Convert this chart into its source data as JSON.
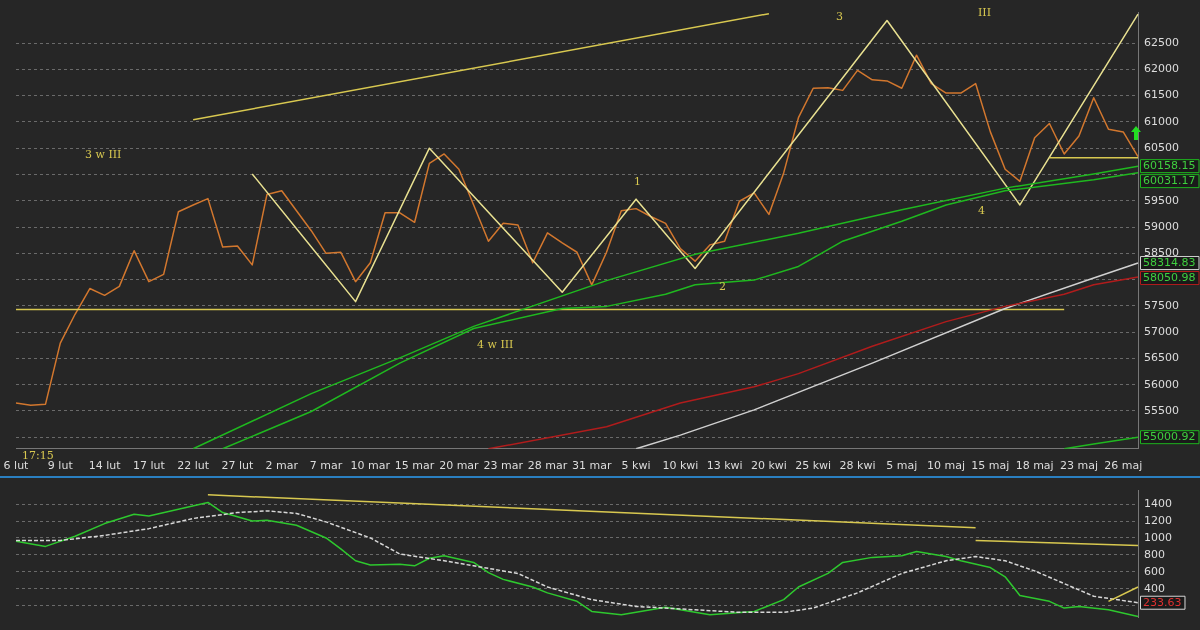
{
  "chart_data": [
    {
      "type": "line",
      "marker": "none",
      "grid": "y",
      "ylim": [
        54780,
        63080
      ],
      "yticks": [
        {
          "value": 55000,
          "label": null
        },
        55500,
        56000,
        56500,
        57000,
        57500,
        {
          "value": 58000,
          "label": null
        },
        58500,
        59000,
        59500,
        {
          "value": 60000,
          "label": null
        },
        60500,
        61000,
        61500,
        62000,
        62500
      ],
      "categories": [
        "6 lut",
        null,
        null,
        "9 lut",
        null,
        null,
        "14 lut",
        null,
        null,
        "17 lut",
        null,
        null,
        "22 lut",
        null,
        null,
        "27 lut",
        null,
        null,
        "2 mar",
        null,
        null,
        "7 mar",
        null,
        null,
        "10 mar",
        null,
        null,
        "15 mar",
        null,
        null,
        "20 mar",
        null,
        null,
        "23 mar",
        null,
        null,
        "28 mar",
        null,
        null,
        "31 mar",
        null,
        null,
        "5 kwi",
        null,
        null,
        "10 kwi",
        null,
        null,
        "13 kwi",
        null,
        null,
        "20 kwi",
        null,
        null,
        "25 kwi",
        null,
        null,
        "28 kwi",
        null,
        null,
        "5 maj",
        null,
        null,
        "10 maj",
        null,
        null,
        "15 maj",
        null,
        null,
        "18 maj",
        null,
        null,
        "23 maj",
        null,
        null,
        "26 maj",
        null
      ],
      "series": [
        {
          "type": "line",
          "color": "#1fb81f",
          "values": [
            null,
            null,
            null,
            null,
            null,
            null,
            null,
            null,
            null,
            null,
            null,
            null,
            54780,
            null,
            null,
            null,
            null,
            null,
            null,
            null,
            55830,
            null,
            null,
            null,
            null,
            null,
            56510,
            null,
            null,
            null,
            null,
            57110,
            null,
            null,
            null,
            null,
            null,
            null,
            null,
            null,
            57980,
            null,
            null,
            null,
            null,
            null,
            58480,
            null,
            null,
            null,
            null,
            null,
            null,
            58880,
            null,
            null,
            null,
            null,
            null,
            null,
            59330,
            null,
            null,
            null,
            null,
            null,
            null,
            59740,
            null,
            null,
            null,
            null,
            null,
            60010,
            null,
            null,
            60158.15
          ],
          "value_labels": [
            null,
            null,
            null,
            null,
            null,
            null,
            null,
            null,
            null,
            null,
            null,
            null,
            null,
            null,
            null,
            null,
            null,
            null,
            null,
            null,
            null,
            null,
            null,
            null,
            null,
            null,
            null,
            null,
            null,
            null,
            null,
            null,
            null,
            null,
            null,
            null,
            null,
            null,
            null,
            null,
            null,
            null,
            null,
            null,
            null,
            null,
            null,
            null,
            null,
            null,
            null,
            null,
            null,
            null,
            null,
            null,
            null,
            null,
            null,
            null,
            null,
            null,
            null,
            null,
            null,
            null,
            null,
            null,
            null,
            null,
            null,
            null,
            null,
            null,
            null,
            null,
            "60158.15"
          ]
        },
        {
          "type": "line",
          "color": "#1fb81f",
          "values": [
            null,
            null,
            null,
            null,
            null,
            null,
            null,
            null,
            null,
            null,
            null,
            null,
            null,
            null,
            54780,
            null,
            null,
            null,
            null,
            null,
            55490,
            null,
            null,
            null,
            null,
            null,
            56410,
            null,
            null,
            null,
            null,
            57070,
            null,
            null,
            null,
            null,
            null,
            57450,
            null,
            null,
            57490,
            null,
            null,
            null,
            57720,
            null,
            57900,
            null,
            null,
            null,
            57990,
            null,
            null,
            58250,
            null,
            null,
            58730,
            null,
            null,
            null,
            59110,
            null,
            null,
            59420,
            null,
            null,
            null,
            59690,
            null,
            null,
            null,
            null,
            null,
            59900,
            null,
            null,
            60031.17
          ],
          "value_labels": [
            null,
            null,
            null,
            null,
            null,
            null,
            null,
            null,
            null,
            null,
            null,
            null,
            null,
            null,
            null,
            null,
            null,
            null,
            null,
            null,
            null,
            null,
            null,
            null,
            null,
            null,
            null,
            null,
            null,
            null,
            null,
            null,
            null,
            null,
            null,
            null,
            null,
            null,
            null,
            null,
            null,
            null,
            null,
            null,
            null,
            null,
            null,
            null,
            null,
            null,
            null,
            null,
            null,
            null,
            null,
            null,
            null,
            null,
            null,
            null,
            null,
            null,
            null,
            null,
            null,
            null,
            null,
            null,
            null,
            null,
            null,
            null,
            null,
            null,
            null,
            null,
            "60031.17"
          ]
        },
        {
          "type": "line",
          "color": "#b01c1c",
          "values": [
            null,
            null,
            null,
            null,
            null,
            null,
            null,
            null,
            null,
            null,
            null,
            null,
            null,
            null,
            null,
            null,
            null,
            null,
            null,
            null,
            null,
            null,
            null,
            null,
            null,
            null,
            null,
            null,
            null,
            null,
            null,
            null,
            54780,
            null,
            null,
            null,
            null,
            null,
            null,
            null,
            55200,
            null,
            null,
            null,
            null,
            55650,
            null,
            null,
            null,
            null,
            55960,
            null,
            null,
            56210,
            null,
            null,
            null,
            null,
            56730,
            null,
            null,
            null,
            null,
            57200,
            null,
            null,
            null,
            57490,
            null,
            null,
            null,
            57720,
            null,
            57900,
            null,
            null,
            58050.98
          ],
          "value_labels": [
            null,
            null,
            null,
            null,
            null,
            null,
            null,
            null,
            null,
            null,
            null,
            null,
            null,
            null,
            null,
            null,
            null,
            null,
            null,
            null,
            null,
            null,
            null,
            null,
            null,
            null,
            null,
            null,
            null,
            null,
            null,
            null,
            null,
            null,
            null,
            null,
            null,
            null,
            null,
            null,
            null,
            null,
            null,
            null,
            null,
            null,
            null,
            null,
            null,
            null,
            null,
            null,
            null,
            null,
            null,
            null,
            null,
            null,
            null,
            null,
            null,
            null,
            null,
            null,
            null,
            null,
            null,
            null,
            null,
            null,
            null,
            null,
            null,
            null,
            null,
            null,
            "58050.98"
          ]
        },
        {
          "type": "line",
          "color": "#d0d0d0",
          "values": [
            null,
            null,
            null,
            null,
            null,
            null,
            null,
            null,
            null,
            null,
            null,
            null,
            null,
            null,
            null,
            null,
            null,
            null,
            null,
            null,
            null,
            null,
            null,
            null,
            null,
            null,
            null,
            null,
            null,
            null,
            null,
            null,
            null,
            null,
            null,
            null,
            null,
            null,
            null,
            null,
            null,
            null,
            54780,
            null,
            null,
            55040,
            null,
            null,
            null,
            null,
            55520,
            null,
            null,
            null,
            null,
            null,
            null,
            null,
            56410,
            null,
            null,
            null,
            null,
            null,
            null,
            null,
            null,
            57450,
            null,
            null,
            null,
            null,
            null,
            58030,
            null,
            null,
            58314.83
          ],
          "value_labels": [
            null,
            null,
            null,
            null,
            null,
            null,
            null,
            null,
            null,
            null,
            null,
            null,
            null,
            null,
            null,
            null,
            null,
            null,
            null,
            null,
            null,
            null,
            null,
            null,
            null,
            null,
            null,
            null,
            null,
            null,
            null,
            null,
            null,
            null,
            null,
            null,
            null,
            null,
            null,
            null,
            null,
            null,
            null,
            null,
            null,
            null,
            null,
            null,
            null,
            null,
            null,
            null,
            null,
            null,
            null,
            null,
            null,
            null,
            null,
            null,
            null,
            null,
            null,
            null,
            null,
            null,
            null,
            null,
            null,
            null,
            null,
            null,
            null,
            null,
            null,
            null,
            "58314.83"
          ]
        },
        {
          "type": "line",
          "color": "#1fb81f",
          "values": [
            null,
            null,
            null,
            null,
            null,
            null,
            null,
            null,
            null,
            null,
            null,
            null,
            null,
            null,
            null,
            null,
            null,
            null,
            null,
            null,
            null,
            null,
            null,
            null,
            null,
            null,
            null,
            null,
            null,
            null,
            null,
            null,
            null,
            null,
            null,
            null,
            null,
            null,
            null,
            null,
            null,
            null,
            null,
            null,
            null,
            null,
            null,
            null,
            null,
            null,
            null,
            null,
            null,
            null,
            null,
            null,
            null,
            null,
            null,
            null,
            null,
            null,
            null,
            null,
            null,
            null,
            null,
            null,
            null,
            null,
            null,
            54780,
            null,
            54870,
            null,
            null,
            55000.92
          ],
          "value_labels": [
            null,
            null,
            null,
            null,
            null,
            null,
            null,
            null,
            null,
            null,
            null,
            null,
            null,
            null,
            null,
            null,
            null,
            null,
            null,
            null,
            null,
            null,
            null,
            null,
            null,
            null,
            null,
            null,
            null,
            null,
            null,
            null,
            null,
            null,
            null,
            null,
            null,
            null,
            null,
            null,
            null,
            null,
            null,
            null,
            null,
            null,
            null,
            null,
            null,
            null,
            null,
            null,
            null,
            null,
            null,
            null,
            null,
            null,
            null,
            null,
            null,
            null,
            null,
            null,
            null,
            null,
            null,
            null,
            null,
            null,
            null,
            null,
            null,
            null,
            null,
            null,
            "55000.92"
          ]
        },
        {
          "type": "line",
          "color": "#d8c850",
          "values": [
            null,
            null,
            null,
            null,
            null,
            null,
            null,
            null,
            null,
            null,
            null,
            null,
            61040,
            null,
            null,
            null,
            null,
            null,
            null,
            null,
            null,
            null,
            null,
            null,
            null,
            null,
            null,
            null,
            null,
            null,
            null,
            null,
            null,
            null,
            null,
            null,
            null,
            null,
            null,
            null,
            null,
            null,
            null,
            null,
            null,
            null,
            null,
            null,
            null,
            null,
            null,
            63060,
            null,
            null,
            null,
            null,
            null,
            null,
            null,
            null,
            null,
            null,
            null,
            null,
            null,
            null,
            null,
            null,
            null,
            null,
            null,
            null,
            null,
            null,
            null,
            null,
            null
          ]
        },
        {
          "type": "line",
          "color": "#d8c850",
          "values": [
            57430,
            null,
            null,
            null,
            null,
            null,
            null,
            null,
            null,
            null,
            null,
            null,
            null,
            null,
            null,
            null,
            null,
            null,
            null,
            null,
            null,
            null,
            null,
            null,
            null,
            null,
            null,
            null,
            null,
            null,
            null,
            null,
            null,
            null,
            null,
            null,
            null,
            null,
            null,
            null,
            null,
            null,
            null,
            null,
            null,
            null,
            null,
            null,
            null,
            null,
            null,
            null,
            null,
            null,
            null,
            null,
            null,
            null,
            null,
            null,
            null,
            null,
            null,
            null,
            null,
            null,
            null,
            null,
            null,
            null,
            null,
            57430,
            null,
            null,
            null,
            null,
            null
          ]
        },
        {
          "type": "line",
          "color": "#d8c850",
          "values": [
            null,
            null,
            null,
            null,
            null,
            null,
            null,
            null,
            null,
            null,
            null,
            null,
            null,
            null,
            null,
            null,
            null,
            null,
            null,
            null,
            null,
            null,
            null,
            null,
            null,
            null,
            null,
            null,
            null,
            null,
            null,
            null,
            null,
            null,
            null,
            null,
            null,
            null,
            null,
            null,
            null,
            null,
            null,
            null,
            null,
            null,
            null,
            null,
            null,
            null,
            null,
            null,
            null,
            null,
            null,
            null,
            null,
            null,
            null,
            null,
            null,
            null,
            null,
            null,
            null,
            null,
            null,
            null,
            null,
            null,
            60320,
            null,
            null,
            null,
            null,
            null,
            60320
          ]
        },
        {
          "type": "line",
          "color": "#e8e090",
          "values": [
            null,
            null,
            null,
            null,
            null,
            null,
            null,
            null,
            null,
            null,
            null,
            null,
            null,
            null,
            null,
            null,
            60010,
            null,
            null,
            null,
            null,
            null,
            null,
            57580,
            null,
            null,
            null,
            null,
            60500,
            null,
            null,
            null,
            null,
            null,
            null,
            null,
            null,
            57760,
            null,
            null,
            null,
            null,
            59530,
            null,
            null,
            null,
            58210,
            null,
            null,
            null,
            null,
            null,
            null,
            null,
            null,
            null,
            null,
            null,
            null,
            62930,
            null,
            null,
            null,
            null,
            null,
            null,
            null,
            null,
            59420,
            null,
            null,
            null,
            null,
            null,
            null,
            null,
            63050
          ]
        },
        {
          "type": "line",
          "color": "#d2772e",
          "values": [
            55650,
            55610,
            55630,
            56790,
            57340,
            57830,
            57700,
            57870,
            58550,
            57960,
            58100,
            59290,
            59420,
            59540,
            58620,
            58640,
            58280,
            59620,
            59690,
            59310,
            58930,
            58500,
            58520,
            57960,
            58320,
            59270,
            59270,
            59090,
            60210,
            60390,
            60100,
            59420,
            58730,
            59070,
            59040,
            58320,
            58890,
            58700,
            58520,
            57900,
            58520,
            59310,
            59350,
            59200,
            59070,
            58590,
            58350,
            58660,
            58730,
            59490,
            59650,
            59240,
            60030,
            61080,
            61640,
            61650,
            61600,
            61980,
            61800,
            61780,
            61640,
            62270,
            61730,
            61550,
            61550,
            61730,
            60810,
            60100,
            59870,
            60700,
            60970,
            60390,
            60730,
            61460,
            60860,
            60810,
            60340
          ]
        }
      ],
      "annotations": [
        "3 w III",
        "4 w III",
        "1",
        "2",
        "3",
        "III",
        "4",
        "17:15"
      ]
    },
    {
      "type": "line",
      "marker": "none",
      "grid": "y",
      "tick_labels": "y",
      "ylim": [
        60,
        1560
      ],
      "yticks": [
        {
          "value": 200,
          "label": null
        },
        400,
        600,
        800,
        1000,
        1200,
        1400
      ],
      "categories": [
        null,
        null,
        null,
        null,
        null,
        null,
        null,
        null,
        null,
        null,
        null,
        null,
        null,
        null,
        null,
        null,
        null,
        null,
        null,
        null,
        null,
        null,
        null,
        null,
        null,
        null,
        null,
        null,
        null,
        null,
        null,
        null,
        null,
        null,
        null,
        null,
        null,
        null,
        null,
        null,
        null,
        null,
        null,
        null,
        null,
        null,
        null,
        null,
        null,
        null,
        null,
        null,
        null,
        null,
        null,
        null,
        null,
        null,
        null,
        null,
        null,
        null,
        null,
        null,
        null,
        null,
        null,
        null,
        null,
        null,
        null,
        null,
        null,
        null,
        null,
        null,
        null
      ],
      "series": [
        {
          "type": "line",
          "color": "#d8c850",
          "values": [
            null,
            null,
            null,
            null,
            null,
            null,
            null,
            null,
            null,
            null,
            null,
            null,
            null,
            1510,
            null,
            null,
            null,
            null,
            null,
            null,
            null,
            null,
            null,
            null,
            null,
            null,
            null,
            null,
            null,
            null,
            null,
            null,
            null,
            null,
            null,
            null,
            null,
            null,
            null,
            null,
            null,
            null,
            null,
            null,
            null,
            null,
            null,
            null,
            null,
            null,
            null,
            null,
            null,
            null,
            null,
            null,
            null,
            null,
            null,
            null,
            null,
            null,
            null,
            null,
            null,
            1120,
            null,
            null,
            null,
            null,
            null,
            null,
            null,
            null,
            null,
            null,
            null
          ]
        },
        {
          "type": "line",
          "color": "#d8c850",
          "values": [
            null,
            null,
            null,
            null,
            null,
            null,
            null,
            null,
            null,
            null,
            null,
            null,
            null,
            null,
            null,
            null,
            null,
            null,
            null,
            null,
            null,
            null,
            null,
            null,
            null,
            null,
            null,
            null,
            null,
            null,
            null,
            null,
            null,
            null,
            null,
            null,
            null,
            null,
            null,
            null,
            null,
            null,
            null,
            null,
            null,
            null,
            null,
            null,
            null,
            null,
            null,
            null,
            null,
            null,
            null,
            null,
            null,
            null,
            null,
            null,
            null,
            null,
            null,
            null,
            null,
            970,
            null,
            null,
            null,
            null,
            null,
            null,
            null,
            null,
            null,
            null,
            910
          ]
        },
        {
          "type": "line",
          "color": "#d8c850",
          "values": [
            null,
            null,
            null,
            null,
            null,
            null,
            null,
            null,
            null,
            null,
            null,
            null,
            null,
            null,
            null,
            null,
            null,
            null,
            null,
            null,
            null,
            null,
            null,
            null,
            null,
            null,
            null,
            null,
            null,
            null,
            null,
            null,
            null,
            null,
            null,
            null,
            null,
            null,
            null,
            null,
            null,
            null,
            null,
            null,
            null,
            null,
            null,
            null,
            null,
            null,
            null,
            null,
            null,
            null,
            null,
            null,
            null,
            null,
            null,
            null,
            null,
            null,
            null,
            null,
            null,
            null,
            null,
            null,
            null,
            null,
            null,
            null,
            null,
            null,
            250,
            null,
            420
          ]
        },
        {
          "type": "line",
          "color": "#d8d8d8",
          "line_style": "dashed",
          "values": [
            970,
            null,
            null,
            970,
            null,
            null,
            1030,
            null,
            null,
            1110,
            null,
            null,
            1230,
            null,
            null,
            1300,
            null,
            1320,
            null,
            1290,
            null,
            1190,
            null,
            null,
            1000,
            null,
            810,
            null,
            null,
            730,
            null,
            670,
            null,
            null,
            580,
            null,
            420,
            null,
            null,
            270,
            null,
            null,
            190,
            null,
            null,
            null,
            150,
            null,
            null,
            120,
            null,
            null,
            120,
            null,
            170,
            null,
            null,
            350,
            null,
            null,
            580,
            null,
            null,
            730,
            null,
            780,
            null,
            730,
            null,
            610,
            null,
            460,
            null,
            310,
            null,
            null,
            233.63
          ],
          "value_labels": [
            null,
            null,
            null,
            null,
            null,
            null,
            null,
            null,
            null,
            null,
            null,
            null,
            null,
            null,
            null,
            null,
            null,
            null,
            null,
            null,
            null,
            null,
            null,
            null,
            null,
            null,
            null,
            null,
            null,
            null,
            null,
            null,
            null,
            null,
            null,
            null,
            null,
            null,
            null,
            null,
            null,
            null,
            null,
            null,
            null,
            null,
            null,
            null,
            null,
            null,
            null,
            null,
            null,
            null,
            null,
            null,
            null,
            null,
            null,
            null,
            null,
            null,
            null,
            null,
            null,
            null,
            null,
            null,
            null,
            null,
            null,
            null,
            null,
            null,
            null,
            null,
            "233.63"
          ]
        },
        {
          "type": "line",
          "color": "#2ec82e",
          "values": [
            960,
            null,
            900,
            null,
            1020,
            null,
            1170,
            null,
            1280,
            1260,
            null,
            1340,
            null,
            1420,
            1300,
            null,
            1200,
            1210,
            null,
            1150,
            null,
            1000,
            870,
            730,
            680,
            null,
            690,
            670,
            760,
            790,
            null,
            710,
            590,
            510,
            null,
            420,
            350,
            null,
            250,
            130,
            null,
            90,
            null,
            150,
            180,
            null,
            120,
            90,
            null,
            null,
            130,
            null,
            270,
            420,
            null,
            580,
            710,
            null,
            770,
            null,
            790,
            840,
            null,
            780,
            730,
            null,
            650,
            540,
            320,
            null,
            250,
            170,
            190,
            null,
            150,
            null,
            70
          ]
        }
      ]
    }
  ]
}
